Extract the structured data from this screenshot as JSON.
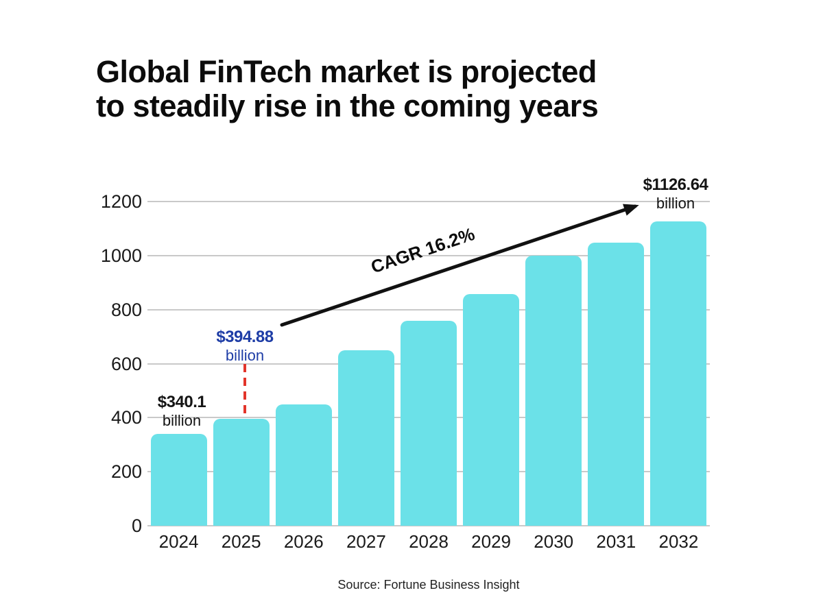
{
  "title": {
    "line1": "Global FinTech market is projected",
    "line2": "to steadily rise in the coming years"
  },
  "chart_data": {
    "type": "bar",
    "title": "Global FinTech market is projected to steadily rise in the coming years",
    "categories": [
      "2024",
      "2025",
      "2026",
      "2027",
      "2028",
      "2029",
      "2030",
      "2031",
      "2032"
    ],
    "values": [
      340.1,
      394.88,
      448,
      650,
      758,
      858,
      1000,
      1049,
      1126.64
    ],
    "xlabel": "",
    "ylabel": "",
    "ylim": [
      0,
      1200
    ],
    "yticks": [
      0,
      200,
      400,
      600,
      800,
      1000,
      1200
    ],
    "grid": true,
    "legend": false,
    "bar_color": "#6be1e8"
  },
  "annotations": {
    "bar2024": {
      "value": "$340.1",
      "unit": "billion"
    },
    "bar2025": {
      "value": "$394.88",
      "unit": "billion"
    },
    "bar2032": {
      "value": "$1126.64",
      "unit": "billion"
    },
    "cagr": {
      "label": "CAGR 16.2%"
    }
  },
  "source": "Source: Fortune Business Insight",
  "colors": {
    "bar": "#6be1e8",
    "grid": "#c9c9c9",
    "highlight_blue": "#1e3da6",
    "dash_red": "#e2342a",
    "arrow_black": "#111111",
    "text": "#141414"
  }
}
